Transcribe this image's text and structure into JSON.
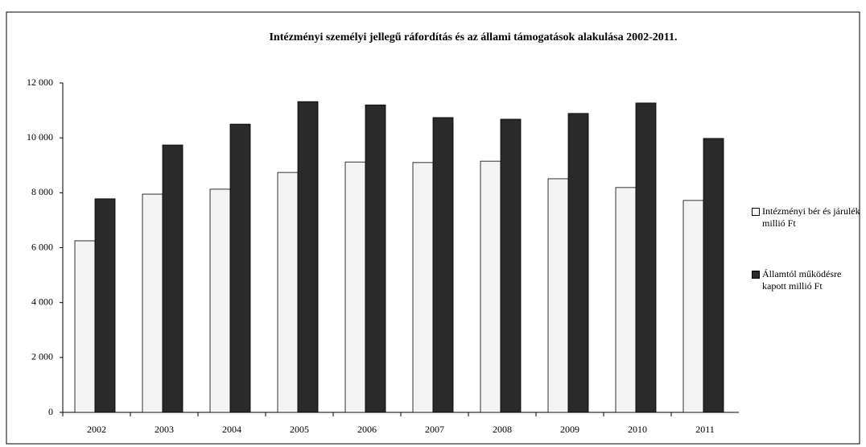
{
  "chart_data": {
    "type": "bar",
    "title": "Intézményi személyi jellegű ráfordítás és az állami támogatások alakulása 2002-2011.",
    "categories": [
      "2002",
      "2003",
      "2004",
      "2005",
      "2006",
      "2007",
      "2008",
      "2009",
      "2010",
      "2011"
    ],
    "series": [
      {
        "name": "Intézményi bér és járulék millió Ft",
        "color": "#f4f4f4",
        "values": [
          6250,
          7950,
          8130,
          8740,
          9120,
          9100,
          9150,
          8510,
          8190,
          7720
        ]
      },
      {
        "name": "Államtól működésre kapott millió Ft",
        "color": "#2a2a2a",
        "values": [
          7780,
          9740,
          10500,
          11320,
          11200,
          10740,
          10680,
          10890,
          11270,
          9980
        ]
      }
    ],
    "ylim": [
      0,
      12000
    ],
    "yticks": [
      0,
      {
        "value": 2000,
        "label": "2 000"
      },
      {
        "value": 4000,
        "label": "4 000"
      },
      {
        "value": 6000,
        "label": "6 000"
      },
      {
        "value": 8000,
        "label": "8 000"
      },
      {
        "value": 10000,
        "label": "10 000"
      },
      {
        "value": 12000,
        "label": "12 000"
      }
    ],
    "legend": "right"
  }
}
